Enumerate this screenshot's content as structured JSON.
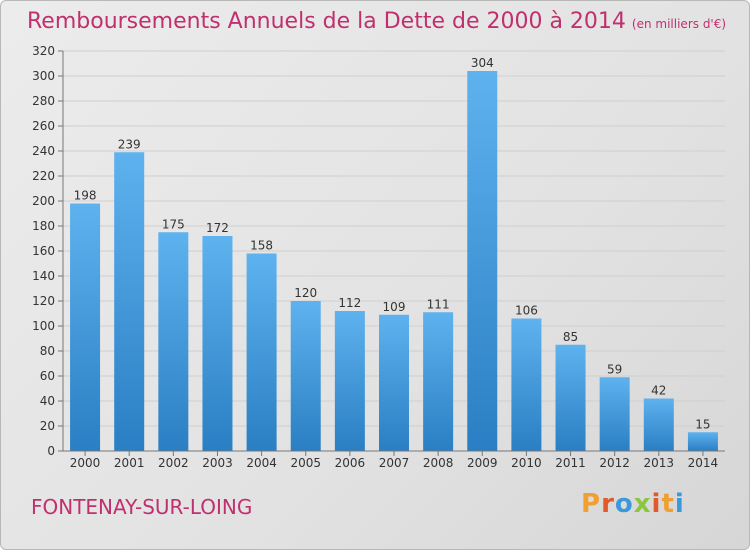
{
  "title": "Remboursements Annuels de la Dette de 2000 à 2014",
  "unit": "(en milliers d'€)",
  "commune": "FONTENAY-SUR-LOING",
  "logo": "Proxiti",
  "colors": {
    "accent": "#c0306e",
    "bar_top": "#5eb2ee",
    "bar_bottom": "#2a7fc4",
    "grid": "#cfcfcf"
  },
  "chart_data": {
    "type": "bar",
    "categories": [
      "2000",
      "2001",
      "2002",
      "2003",
      "2004",
      "2005",
      "2006",
      "2007",
      "2008",
      "2009",
      "2010",
      "2011",
      "2012",
      "2013",
      "2014"
    ],
    "values": [
      198,
      239,
      175,
      172,
      158,
      120,
      112,
      109,
      111,
      304,
      106,
      85,
      59,
      42,
      15
    ],
    "title": "Remboursements Annuels de la Dette de 2000 à 2014",
    "xlabel": "",
    "ylabel": "",
    "ylim": [
      0,
      320
    ],
    "yticks": [
      0,
      20,
      40,
      60,
      80,
      100,
      120,
      140,
      160,
      180,
      200,
      220,
      240,
      260,
      280,
      300,
      320
    ],
    "grid": true
  }
}
